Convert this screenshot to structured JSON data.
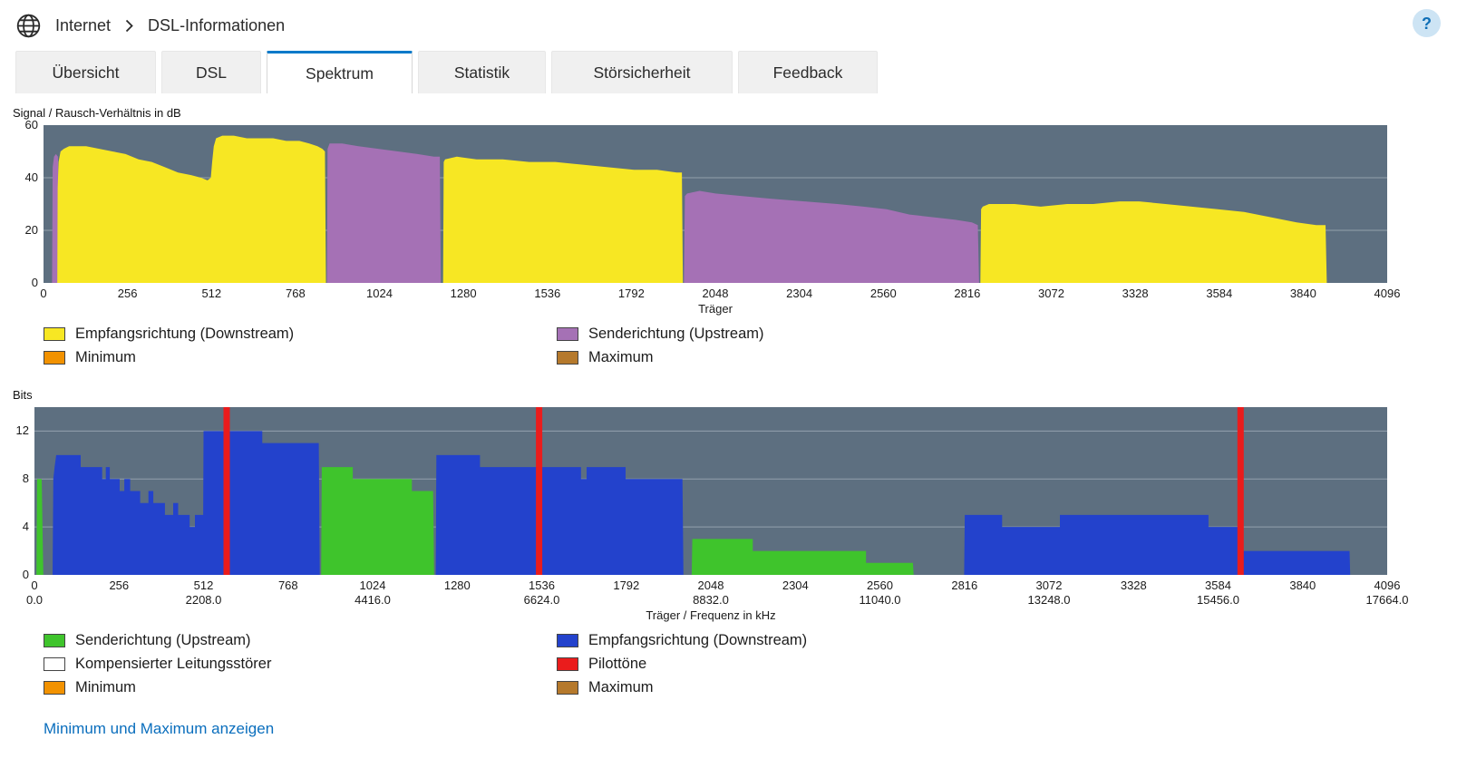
{
  "header": {
    "breadcrumb": [
      "Internet",
      "DSL-Informationen"
    ],
    "help_label": "?"
  },
  "tabs": [
    {
      "label": "Übersicht",
      "active": false
    },
    {
      "label": "DSL",
      "active": false
    },
    {
      "label": "Spektrum",
      "active": true
    },
    {
      "label": "Statistik",
      "active": false
    },
    {
      "label": "Störsicherheit",
      "active": false
    },
    {
      "label": "Feedback",
      "active": false
    }
  ],
  "legends": [
    {
      "items": [
        {
          "color": "#f7e723",
          "label": "Empfangsrichtung (Downstream)"
        },
        {
          "color": "#a571b5",
          "label": "Senderichtung (Upstream)"
        },
        {
          "color": "#f29200",
          "label": "Minimum"
        },
        {
          "color": "#b5792c",
          "label": "Maximum"
        }
      ]
    },
    {
      "items": [
        {
          "color": "#3fc42c",
          "label": "Senderichtung (Upstream)"
        },
        {
          "color": "#2342cc",
          "label": "Empfangsrichtung (Downstream)"
        },
        {
          "color": "#ffffff",
          "label": "Kompensierter Leitungsstörer"
        },
        {
          "color": "#ea1c1c",
          "label": "Pilottöne"
        },
        {
          "color": "#f29200",
          "label": "Minimum"
        },
        {
          "color": "#b5792c",
          "label": "Maximum"
        }
      ]
    }
  ],
  "footer_link": {
    "label": "Minimum und Maximum anzeigen"
  },
  "chart_data": [
    {
      "type": "area",
      "title": "Signal / Rausch-Verhältnis in dB",
      "xlabel": "Träger",
      "ylabel": "Signal / Rausch-Verhältnis in dB",
      "xlim": [
        0,
        4096
      ],
      "ylim": [
        0,
        60
      ],
      "xticks": [
        0,
        256,
        512,
        768,
        1024,
        1280,
        1536,
        1792,
        2048,
        2304,
        2560,
        2816,
        3072,
        3328,
        3584,
        3840,
        4096
      ],
      "yticks": [
        0,
        20,
        40,
        60
      ],
      "plot_bg": "#5d6f80",
      "grid_color": "rgba(230,235,240,0.4)",
      "series": [
        {
          "name": "Senderichtung (Upstream)",
          "color": "#a571b5",
          "segments": [
            [
              [
                26,
                0
              ],
              [
                28,
                44
              ],
              [
                32,
                48
              ],
              [
                38,
                49
              ],
              [
                44,
                48
              ],
              [
                47,
                28
              ],
              [
                49,
                0
              ]
            ],
            [
              [
                864,
                0
              ],
              [
                866,
                51
              ],
              [
                872,
                53
              ],
              [
                910,
                53
              ],
              [
                960,
                52
              ],
              [
                1020,
                51
              ],
              [
                1080,
                50
              ],
              [
                1140,
                49
              ],
              [
                1190,
                48
              ],
              [
                1208,
                48
              ],
              [
                1211,
                0
              ]
            ],
            [
              [
                1952,
                0
              ],
              [
                1955,
                33
              ],
              [
                1962,
                34
              ],
              [
                2000,
                35
              ],
              [
                2048,
                34
              ],
              [
                2130,
                33
              ],
              [
                2220,
                32
              ],
              [
                2320,
                31
              ],
              [
                2420,
                30
              ],
              [
                2500,
                29
              ],
              [
                2570,
                28
              ],
              [
                2640,
                26
              ],
              [
                2710,
                25
              ],
              [
                2780,
                24
              ],
              [
                2830,
                23
              ],
              [
                2848,
                22
              ],
              [
                2852,
                0
              ]
            ]
          ]
        },
        {
          "name": "Empfangsrichtung (Downstream)",
          "color": "#f7e723",
          "segments": [
            [
              [
                42,
                0
              ],
              [
                43,
                36
              ],
              [
                46,
                46
              ],
              [
                52,
                50
              ],
              [
                62,
                51
              ],
              [
                78,
                52
              ],
              [
                130,
                52
              ],
              [
                170,
                51
              ],
              [
                210,
                50
              ],
              [
                250,
                49
              ],
              [
                290,
                47
              ],
              [
                330,
                46
              ],
              [
                370,
                44
              ],
              [
                410,
                42
              ],
              [
                450,
                41
              ],
              [
                480,
                40
              ],
              [
                500,
                39
              ],
              [
                510,
                40
              ],
              [
                514,
                46
              ],
              [
                519,
                52
              ],
              [
                526,
                55
              ],
              [
                545,
                56
              ],
              [
                580,
                56
              ],
              [
                620,
                55
              ],
              [
                660,
                55
              ],
              [
                700,
                55
              ],
              [
                740,
                54
              ],
              [
                780,
                54
              ],
              [
                810,
                53
              ],
              [
                835,
                52
              ],
              [
                850,
                51
              ],
              [
                858,
                50
              ],
              [
                861,
                0
              ]
            ],
            [
              [
                1218,
                0
              ],
              [
                1220,
                46
              ],
              [
                1224,
                47
              ],
              [
                1260,
                48
              ],
              [
                1320,
                47
              ],
              [
                1400,
                47
              ],
              [
                1480,
                46
              ],
              [
                1560,
                46
              ],
              [
                1640,
                45
              ],
              [
                1720,
                44
              ],
              [
                1800,
                43
              ],
              [
                1870,
                43
              ],
              [
                1930,
                42
              ],
              [
                1946,
                42
              ],
              [
                1949,
                0
              ]
            ],
            [
              [
                2856,
                0
              ],
              [
                2858,
                28
              ],
              [
                2863,
                29
              ],
              [
                2882,
                30
              ],
              [
                2960,
                30
              ],
              [
                3040,
                29
              ],
              [
                3120,
                30
              ],
              [
                3200,
                30
              ],
              [
                3280,
                31
              ],
              [
                3340,
                31
              ],
              [
                3420,
                30
              ],
              [
                3500,
                29
              ],
              [
                3580,
                28
              ],
              [
                3660,
                27
              ],
              [
                3740,
                25
              ],
              [
                3820,
                23
              ],
              [
                3880,
                22
              ],
              [
                3908,
                22
              ],
              [
                3912,
                0
              ]
            ]
          ]
        }
      ]
    },
    {
      "type": "area",
      "title": "Bits",
      "xlabel": "Träger / Frequenz in kHz",
      "ylabel": "Bits",
      "xlim": [
        0,
        4096
      ],
      "ylim": [
        0,
        14
      ],
      "xticks": [
        0,
        256,
        512,
        768,
        1024,
        1280,
        1536,
        1792,
        2048,
        2304,
        2560,
        2816,
        3072,
        3328,
        3584,
        3840,
        4096
      ],
      "xticks2": {
        "positions": [
          0,
          512,
          1024,
          1536,
          2048,
          2560,
          3072,
          3584,
          4096
        ],
        "labels": [
          "0.0",
          "2208.0",
          "4416.0",
          "6624.0",
          "8832.0",
          "11040.0",
          "13248.0",
          "15456.0",
          "17664.0"
        ]
      },
      "yticks": [
        0,
        4,
        8,
        12
      ],
      "plot_bg": "#5d6f80",
      "grid_color": "rgba(230,235,240,0.4)",
      "pilot_tones": {
        "name": "Pilottöne",
        "color": "#ea1c1c",
        "positions": [
          582,
          1528,
          3652
        ]
      },
      "series": [
        {
          "name": "Senderichtung (Upstream)",
          "color": "#3fc42c",
          "segments": [
            [
              [
                6,
                0
              ],
              [
                8,
                8
              ],
              [
                22,
                8
              ],
              [
                25,
                3
              ],
              [
                27,
                0
              ]
            ],
            [
              [
                868,
                0
              ],
              [
                870,
                9
              ],
              [
                964,
                9
              ],
              [
                964,
                8
              ],
              [
                1143,
                8
              ],
              [
                1143,
                7
              ],
              [
                1207,
                7
              ],
              [
                1210,
                0
              ]
            ],
            [
              [
                1990,
                0
              ],
              [
                1992,
                3
              ],
              [
                2175,
                3
              ],
              [
                2175,
                2
              ],
              [
                2518,
                2
              ],
              [
                2518,
                1
              ],
              [
                2660,
                1
              ],
              [
                2662,
                0
              ]
            ]
          ]
        },
        {
          "name": "Empfangsrichtung (Downstream)",
          "color": "#2342cc",
          "segments": [
            [
              [
                55,
                0
              ],
              [
                57,
                8
              ],
              [
                61,
                9
              ],
              [
                66,
                10
              ],
              [
                140,
                10
              ],
              [
                140,
                9
              ],
              [
                205,
                9
              ],
              [
                205,
                8
              ],
              [
                216,
                8
              ],
              [
                216,
                9
              ],
              [
                228,
                9
              ],
              [
                228,
                8
              ],
              [
                258,
                8
              ],
              [
                258,
                7
              ],
              [
                272,
                7
              ],
              [
                272,
                8
              ],
              [
                290,
                8
              ],
              [
                290,
                7
              ],
              [
                320,
                7
              ],
              [
                320,
                6
              ],
              [
                345,
                6
              ],
              [
                345,
                7
              ],
              [
                360,
                7
              ],
              [
                360,
                6
              ],
              [
                395,
                6
              ],
              [
                395,
                5
              ],
              [
                420,
                5
              ],
              [
                420,
                6
              ],
              [
                435,
                6
              ],
              [
                435,
                5
              ],
              [
                470,
                5
              ],
              [
                470,
                4
              ],
              [
                486,
                4
              ],
              [
                486,
                5
              ],
              [
                511,
                5
              ],
              [
                512,
                12
              ],
              [
                690,
                12
              ],
              [
                690,
                11
              ],
              [
                861,
                11
              ],
              [
                864,
                0
              ]
            ],
            [
              [
                1215,
                0
              ],
              [
                1217,
                10
              ],
              [
                1349,
                10
              ],
              [
                1349,
                9
              ],
              [
                1655,
                9
              ],
              [
                1655,
                8
              ],
              [
                1672,
                8
              ],
              [
                1672,
                9
              ],
              [
                1790,
                9
              ],
              [
                1790,
                8
              ],
              [
                1962,
                8
              ],
              [
                1965,
                0
              ]
            ],
            [
              [
                2815,
                0
              ],
              [
                2817,
                5
              ],
              [
                2930,
                5
              ],
              [
                2930,
                4
              ],
              [
                3105,
                4
              ],
              [
                3105,
                5
              ],
              [
                3555,
                5
              ],
              [
                3555,
                4
              ],
              [
                3648,
                4
              ],
              [
                3648,
                2
              ],
              [
                3982,
                2
              ],
              [
                3984,
                0
              ]
            ]
          ]
        }
      ]
    }
  ]
}
